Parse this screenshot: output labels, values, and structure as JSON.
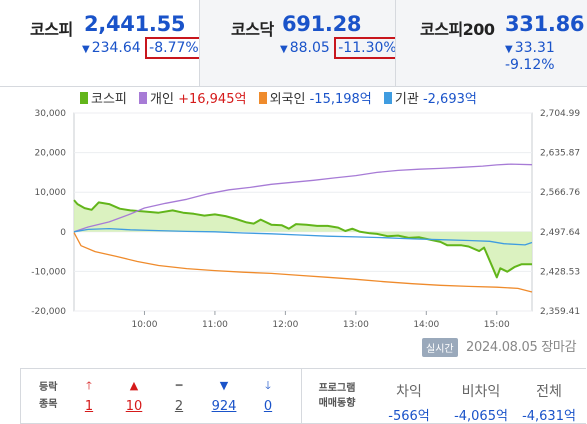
{
  "tabs": [
    {
      "name": "코스피",
      "value": "2,441.55",
      "change": "234.64",
      "pct": "-8.77%"
    },
    {
      "name": "코스닥",
      "value": "691.28",
      "change": "88.05",
      "pct": "-11.30%"
    },
    {
      "name": "코스피200",
      "value": "331.86",
      "change": "33.31",
      "pct": "-9.12%"
    }
  ],
  "legend": {
    "kospi": "코스피",
    "individual_label": "개인",
    "individual_value": "+16,945억",
    "foreign_label": "외국인",
    "foreign_value": "-15,198억",
    "institution_label": "기관",
    "institution_value": "-2,693억"
  },
  "colors": {
    "kospi": "#62b51a",
    "kospi_fill": "#d5f0b5",
    "individual": "#a77bd6",
    "foreign": "#ef8b2c",
    "institution": "#3f9ce0",
    "down": "#1a53c9",
    "up": "#d51a1a"
  },
  "chart_data": {
    "type": "line",
    "left_axis_ticks": [
      "30,000",
      "20,000",
      "10,000",
      "0",
      "-10,000",
      "-20,000"
    ],
    "left_axis_values": [
      30000,
      20000,
      10000,
      0,
      -10000,
      -20000
    ],
    "right_axis_ticks": [
      "2,704.99",
      "2,635.87",
      "2,566.76",
      "2,497.64",
      "2,428.53",
      "2,359.41"
    ],
    "right_axis_values": [
      2704.99,
      2635.87,
      2566.76,
      2497.64,
      2428.53,
      2359.41
    ],
    "x_ticks": [
      "10:00",
      "11:00",
      "12:00",
      "13:00",
      "14:00",
      "15:00"
    ],
    "x_tick_hours": [
      10,
      11,
      12,
      13,
      14,
      15
    ],
    "x_range": [
      9.0,
      15.5
    ],
    "series": [
      {
        "name": "코스피",
        "key": "kospi",
        "axis": "right",
        "points": [
          [
            9.0,
            2553
          ],
          [
            9.05,
            2546
          ],
          [
            9.15,
            2539
          ],
          [
            9.25,
            2536
          ],
          [
            9.35,
            2549
          ],
          [
            9.5,
            2546
          ],
          [
            9.65,
            2538
          ],
          [
            9.8,
            2535
          ],
          [
            10.0,
            2533
          ],
          [
            10.2,
            2531
          ],
          [
            10.4,
            2535
          ],
          [
            10.55,
            2531
          ],
          [
            10.7,
            2529
          ],
          [
            10.85,
            2526
          ],
          [
            11.0,
            2528
          ],
          [
            11.15,
            2525
          ],
          [
            11.3,
            2520
          ],
          [
            11.45,
            2514
          ],
          [
            11.55,
            2512
          ],
          [
            11.65,
            2519
          ],
          [
            11.8,
            2510
          ],
          [
            11.95,
            2509
          ],
          [
            12.05,
            2503
          ],
          [
            12.15,
            2511
          ],
          [
            12.3,
            2510
          ],
          [
            12.45,
            2508
          ],
          [
            12.6,
            2508
          ],
          [
            12.75,
            2505
          ],
          [
            12.85,
            2499
          ],
          [
            12.95,
            2503
          ],
          [
            13.05,
            2498
          ],
          [
            13.2,
            2495
          ],
          [
            13.3,
            2494
          ],
          [
            13.45,
            2490
          ],
          [
            13.6,
            2491
          ],
          [
            13.75,
            2487
          ],
          [
            13.9,
            2488
          ],
          [
            14.05,
            2484
          ],
          [
            14.2,
            2480
          ],
          [
            14.3,
            2474
          ],
          [
            14.5,
            2474
          ],
          [
            14.6,
            2472
          ],
          [
            14.75,
            2464
          ],
          [
            14.82,
            2470
          ],
          [
            14.95,
            2433
          ],
          [
            15.0,
            2418
          ],
          [
            15.05,
            2434
          ],
          [
            15.15,
            2428
          ],
          [
            15.25,
            2436
          ],
          [
            15.35,
            2441
          ],
          [
            15.5,
            2441
          ]
        ]
      },
      {
        "name": "개인",
        "key": "individual",
        "axis": "left",
        "points": [
          [
            9.0,
            0
          ],
          [
            9.2,
            1200
          ],
          [
            9.5,
            2500
          ],
          [
            9.8,
            4500
          ],
          [
            10.0,
            6000
          ],
          [
            10.3,
            7200
          ],
          [
            10.6,
            8200
          ],
          [
            10.9,
            9600
          ],
          [
            11.2,
            10600
          ],
          [
            11.5,
            11200
          ],
          [
            11.8,
            12000
          ],
          [
            12.1,
            12500
          ],
          [
            12.4,
            13000
          ],
          [
            12.7,
            13600
          ],
          [
            13.0,
            14200
          ],
          [
            13.3,
            15000
          ],
          [
            13.6,
            15500
          ],
          [
            13.9,
            15800
          ],
          [
            14.2,
            16000
          ],
          [
            14.5,
            16300
          ],
          [
            14.8,
            16600
          ],
          [
            15.0,
            16900
          ],
          [
            15.2,
            17100
          ],
          [
            15.5,
            16945
          ]
        ]
      },
      {
        "name": "외국인",
        "key": "foreign",
        "axis": "left",
        "points": [
          [
            9.0,
            -200
          ],
          [
            9.1,
            -3500
          ],
          [
            9.3,
            -5000
          ],
          [
            9.6,
            -6200
          ],
          [
            9.9,
            -7500
          ],
          [
            10.2,
            -8500
          ],
          [
            10.6,
            -9300
          ],
          [
            11.0,
            -9800
          ],
          [
            11.4,
            -10200
          ],
          [
            11.8,
            -10500
          ],
          [
            12.2,
            -11000
          ],
          [
            12.6,
            -11500
          ],
          [
            13.0,
            -12000
          ],
          [
            13.4,
            -12600
          ],
          [
            13.8,
            -13100
          ],
          [
            14.2,
            -13500
          ],
          [
            14.6,
            -13800
          ],
          [
            15.0,
            -14000
          ],
          [
            15.3,
            -14300
          ],
          [
            15.5,
            -15198
          ]
        ]
      },
      {
        "name": "기관",
        "key": "institution",
        "axis": "left",
        "points": [
          [
            9.0,
            0
          ],
          [
            9.2,
            600
          ],
          [
            9.5,
            800
          ],
          [
            9.8,
            500
          ],
          [
            10.2,
            300
          ],
          [
            10.6,
            100
          ],
          [
            11.0,
            0
          ],
          [
            11.4,
            -300
          ],
          [
            11.8,
            -500
          ],
          [
            12.2,
            -800
          ],
          [
            12.6,
            -1100
          ],
          [
            13.0,
            -1300
          ],
          [
            13.4,
            -1500
          ],
          [
            13.8,
            -1800
          ],
          [
            14.2,
            -2000
          ],
          [
            14.6,
            -2200
          ],
          [
            14.9,
            -2400
          ],
          [
            15.1,
            -3000
          ],
          [
            15.4,
            -3300
          ],
          [
            15.5,
            -2693
          ]
        ]
      }
    ]
  },
  "realtime_badge": "실시간",
  "datestamp": "2024.08.05 장마감",
  "breadth": {
    "label": "등락\n종목",
    "items": [
      {
        "icon": "up-limit-icon",
        "glyph": "🡑",
        "count": "1"
      },
      {
        "icon": "up-icon",
        "glyph": "▲",
        "count": "10"
      },
      {
        "icon": "flat-icon",
        "glyph": "━",
        "count": "2"
      },
      {
        "icon": "down-icon",
        "glyph": "▼",
        "count": "924"
      },
      {
        "icon": "down-limit-icon",
        "glyph": "🡓",
        "count": "0"
      }
    ]
  },
  "program": {
    "label": "프로그램\n매매동향",
    "items": [
      {
        "name": "차익",
        "value": "-566억"
      },
      {
        "name": "비차익",
        "value": "-4,065억"
      },
      {
        "name": "전체",
        "value": "-4,631억"
      }
    ]
  }
}
